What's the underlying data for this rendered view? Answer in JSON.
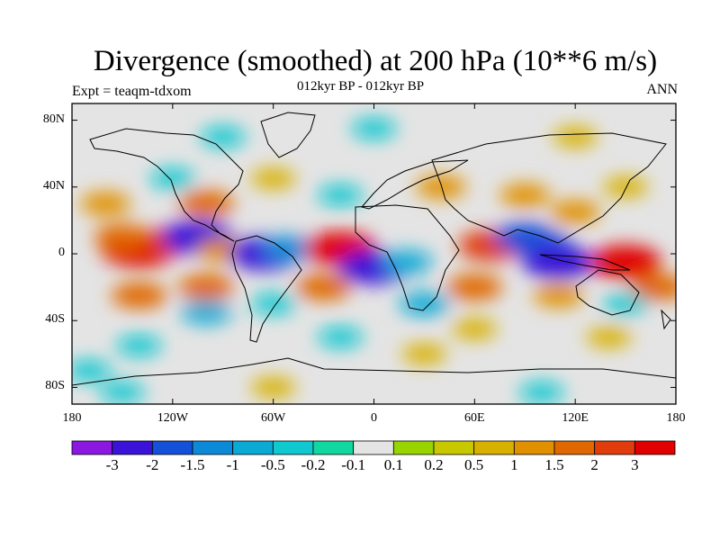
{
  "title": "Divergence (smoothed) at 200 hPa (10**6 m/s)",
  "subtitle": "012kyr BP - 012kyr BP",
  "experiment": "Expt = teaqm-tdxom",
  "season": "ANN",
  "chart_data": {
    "type": "heatmap",
    "projection": "cylindrical-equidistant",
    "variable": "Divergence (smoothed) at 200 hPa",
    "units": "10**6 m/s",
    "lon_range": [
      -180,
      180
    ],
    "lat_range": [
      -90,
      90
    ],
    "lat_ticks": [
      {
        "value": 80,
        "label": "80N"
      },
      {
        "value": 40,
        "label": "40N"
      },
      {
        "value": 0,
        "label": "0"
      },
      {
        "value": -40,
        "label": "40S"
      },
      {
        "value": -80,
        "label": "80S"
      }
    ],
    "lon_ticks": [
      {
        "value": -180,
        "label": "180"
      },
      {
        "value": -120,
        "label": "120W"
      },
      {
        "value": -60,
        "label": "60W"
      },
      {
        "value": 0,
        "label": "0"
      },
      {
        "value": 60,
        "label": "60E"
      },
      {
        "value": 120,
        "label": "120E"
      },
      {
        "value": 180,
        "label": "180"
      }
    ],
    "colorbar": {
      "labels": [
        "-3",
        "-2",
        "-1.5",
        "-1",
        "-0.5",
        "-0.2",
        "-0.1",
        "0.1",
        "0.2",
        "0.5",
        "1",
        "1.5",
        "2",
        "3"
      ],
      "colors": [
        "#8a18e0",
        "#3a12d8",
        "#1550d8",
        "#0c8ad8",
        "#0aaad5",
        "#10c8d0",
        "#10d8a0",
        "#e4e4e4",
        "#98d400",
        "#c8c800",
        "#d8b000",
        "#e09000",
        "#e06800",
        "#e03c0c",
        "#e00000"
      ]
    },
    "features": [
      {
        "lon": -140,
        "lat": 3,
        "value": 3.5
      },
      {
        "lon": -150,
        "lat": 10,
        "value": 1.5
      },
      {
        "lon": -120,
        "lat": 8,
        "value": 2
      },
      {
        "lon": -105,
        "lat": 10,
        "value": -3
      },
      {
        "lon": -90,
        "lat": 2,
        "value": 1.2
      },
      {
        "lon": -65,
        "lat": 0,
        "value": -3
      },
      {
        "lon": -50,
        "lat": 3,
        "value": -1.5
      },
      {
        "lon": -20,
        "lat": 3,
        "value": 3
      },
      {
        "lon": 0,
        "lat": -8,
        "value": -3
      },
      {
        "lon": 20,
        "lat": -5,
        "value": -1
      },
      {
        "lon": 30,
        "lat": -30,
        "value": -1
      },
      {
        "lon": 70,
        "lat": 5,
        "value": 2.5
      },
      {
        "lon": 90,
        "lat": 10,
        "value": -2
      },
      {
        "lon": 100,
        "lat": 5,
        "value": -2
      },
      {
        "lon": 110,
        "lat": -5,
        "value": -3
      },
      {
        "lon": 150,
        "lat": -5,
        "value": 3
      },
      {
        "lon": 120,
        "lat": 25,
        "value": 1
      },
      {
        "lon": -160,
        "lat": 30,
        "value": 1
      },
      {
        "lon": -100,
        "lat": 30,
        "value": 1.5
      },
      {
        "lon": -120,
        "lat": 45,
        "value": -0.5
      },
      {
        "lon": -60,
        "lat": 45,
        "value": 0.5
      },
      {
        "lon": -20,
        "lat": 35,
        "value": -0.5
      },
      {
        "lon": 40,
        "lat": 40,
        "value": 1
      },
      {
        "lon": 90,
        "lat": 35,
        "value": 1
      },
      {
        "lon": 150,
        "lat": 40,
        "value": 0.5
      },
      {
        "lon": -140,
        "lat": -25,
        "value": 1.5
      },
      {
        "lon": -100,
        "lat": -20,
        "value": 1.5
      },
      {
        "lon": -60,
        "lat": -30,
        "value": -0.5
      },
      {
        "lon": -30,
        "lat": -20,
        "value": 1.5
      },
      {
        "lon": 60,
        "lat": -20,
        "value": 1.5
      },
      {
        "lon": 110,
        "lat": -25,
        "value": 1
      },
      {
        "lon": 150,
        "lat": -30,
        "value": -0.5
      },
      {
        "lon": -100,
        "lat": -35,
        "value": -1
      },
      {
        "lon": 170,
        "lat": -20,
        "value": 1.5
      },
      {
        "lon": -20,
        "lat": -50,
        "value": -0.5
      },
      {
        "lon": 60,
        "lat": -45,
        "value": 0.5
      },
      {
        "lon": 140,
        "lat": -50,
        "value": 0.5
      },
      {
        "lon": -140,
        "lat": -55,
        "value": -0.5
      },
      {
        "lon": -170,
        "lat": -70,
        "value": -0.5
      },
      {
        "lon": 30,
        "lat": -60,
        "value": 0.5
      },
      {
        "lon": 0,
        "lat": 75,
        "value": -0.5
      },
      {
        "lon": 120,
        "lat": 70,
        "value": 0.5
      },
      {
        "lon": -90,
        "lat": 70,
        "value": -0.5
      },
      {
        "lon": -150,
        "lat": -83,
        "value": -0.5
      },
      {
        "lon": 100,
        "lat": -83,
        "value": -0.5
      },
      {
        "lon": -60,
        "lat": -80,
        "value": 0.5
      }
    ]
  }
}
